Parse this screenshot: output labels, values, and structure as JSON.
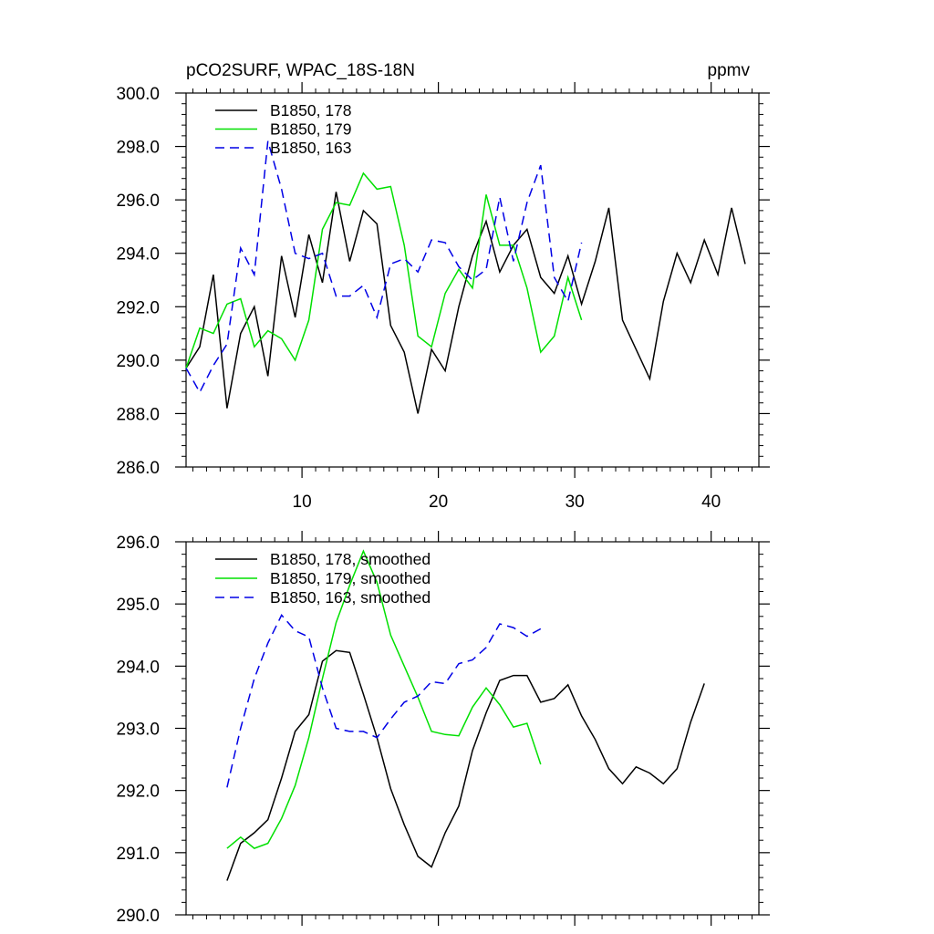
{
  "colors": {
    "series_178": "#000000",
    "series_179": "#00e000",
    "series_163": "#0000e6",
    "frame": "#000000",
    "background": "#ffffff"
  },
  "chart_data": [
    {
      "type": "line",
      "title": "pCO2SURF, WPAC_18S-18N",
      "units": "ppmv",
      "xlim": [
        1.5,
        43.5
      ],
      "ylim": [
        286.0,
        300.0
      ],
      "x_ticks": [
        10,
        20,
        30,
        40
      ],
      "x_tick_labels": [
        "10",
        "20",
        "30",
        "40"
      ],
      "y_ticks": [
        286,
        288,
        290,
        292,
        294,
        296,
        298,
        300
      ],
      "y_tick_labels": [
        "286.0",
        "288.0",
        "290.0",
        "292.0",
        "294.0",
        "296.0",
        "298.0",
        "300.0"
      ],
      "legend_position": "top-left",
      "series": [
        {
          "name": "B1850, 178",
          "color": "#000000",
          "dash": "solid",
          "x": [
            1.5,
            2.5,
            3.5,
            4.5,
            5.5,
            6.5,
            7.5,
            8.5,
            9.5,
            10.5,
            11.5,
            12.5,
            13.5,
            14.5,
            15.5,
            16.5,
            17.5,
            18.5,
            19.5,
            20.5,
            21.5,
            22.5,
            23.5,
            24.5,
            25.5,
            26.5,
            27.5,
            28.5,
            29.5,
            30.5,
            31.5,
            32.5,
            33.5,
            34.5,
            35.5,
            36.5,
            37.5,
            38.5,
            39.5,
            40.5,
            41.5,
            42.5
          ],
          "values": [
            289.7,
            290.5,
            293.2,
            288.2,
            291.0,
            292.0,
            289.4,
            293.9,
            291.6,
            294.7,
            292.9,
            296.3,
            293.7,
            295.6,
            295.1,
            291.3,
            290.3,
            288.0,
            290.4,
            289.6,
            292.0,
            293.9,
            295.2,
            293.3,
            294.3,
            294.9,
            293.1,
            292.5,
            293.9,
            292.1,
            293.7,
            295.7,
            291.5,
            290.4,
            289.3,
            292.2,
            294.0,
            292.9,
            294.5,
            293.2,
            295.7,
            293.6
          ]
        },
        {
          "name": "B1850, 179",
          "color": "#00e000",
          "dash": "solid",
          "x": [
            1.5,
            2.5,
            3.5,
            4.5,
            5.5,
            6.5,
            7.5,
            8.5,
            9.5,
            10.5,
            11.5,
            12.5,
            13.5,
            14.5,
            15.5,
            16.5,
            17.5,
            18.5,
            19.5,
            20.5,
            21.5,
            22.5,
            23.5,
            24.5,
            25.5,
            26.5,
            27.5,
            28.5,
            29.5,
            30.5
          ],
          "values": [
            289.7,
            291.2,
            291.0,
            292.1,
            292.3,
            290.5,
            291.1,
            290.8,
            290.0,
            291.5,
            294.9,
            295.9,
            295.8,
            297.0,
            296.4,
            296.5,
            294.3,
            290.9,
            290.5,
            292.5,
            293.4,
            292.7,
            296.2,
            294.3,
            294.3,
            292.7,
            290.3,
            290.9,
            293.1,
            291.5
          ]
        },
        {
          "name": "B1850, 163",
          "color": "#0000e6",
          "dash": "dashed",
          "x": [
            1.5,
            2.5,
            3.5,
            4.5,
            5.5,
            6.5,
            7.5,
            8.5,
            9.5,
            10.5,
            11.5,
            12.5,
            13.5,
            14.5,
            15.5,
            16.5,
            17.5,
            18.5,
            19.5,
            20.5,
            21.5,
            22.5,
            23.5,
            24.5,
            25.5,
            26.5,
            27.5,
            28.5,
            29.5,
            30.5
          ],
          "values": [
            289.7,
            288.8,
            289.8,
            290.6,
            294.2,
            293.2,
            298.2,
            296.4,
            294.0,
            293.8,
            294.0,
            292.4,
            292.4,
            292.8,
            291.6,
            293.6,
            293.8,
            293.3,
            294.5,
            294.4,
            293.5,
            293.0,
            293.4,
            296.1,
            293.7,
            295.9,
            297.3,
            293.1,
            292.2,
            294.4
          ]
        }
      ]
    },
    {
      "type": "line",
      "title": "",
      "xlim": [
        1.5,
        43.5
      ],
      "ylim": [
        290.0,
        296.0
      ],
      "x_ticks": [
        10,
        20,
        30,
        40
      ],
      "y_ticks": [
        290,
        291,
        292,
        293,
        294,
        295,
        296
      ],
      "y_tick_labels": [
        "290.0",
        "291.0",
        "292.0",
        "293.0",
        "294.0",
        "295.0",
        "296.0"
      ],
      "legend_position": "top-left",
      "series": [
        {
          "name": "B1850, 178, smoothed",
          "color": "#000000",
          "dash": "solid",
          "x": [
            4.5,
            5.5,
            6.5,
            7.5,
            8.5,
            9.5,
            10.5,
            11.5,
            12.5,
            13.5,
            14.5,
            15.5,
            16.5,
            17.5,
            18.5,
            19.5,
            20.5,
            21.5,
            22.5,
            23.5,
            24.5,
            25.5,
            26.5,
            27.5,
            28.5,
            29.5,
            30.5,
            31.5,
            32.5,
            33.5,
            34.5,
            35.5,
            36.5,
            37.5,
            38.5,
            39.5
          ],
          "values": [
            290.55,
            291.15,
            291.32,
            291.53,
            292.2,
            292.95,
            293.22,
            294.08,
            294.25,
            294.22,
            293.55,
            292.85,
            292.03,
            291.45,
            290.94,
            290.77,
            291.32,
            291.75,
            292.64,
            293.25,
            293.77,
            293.85,
            293.85,
            293.42,
            293.48,
            293.7,
            293.2,
            292.82,
            292.35,
            292.11,
            292.38,
            292.28,
            292.11,
            292.35,
            293.1,
            293.72
          ]
        },
        {
          "name": "B1850, 179, smoothed",
          "color": "#00e000",
          "dash": "solid",
          "x": [
            4.5,
            5.5,
            6.5,
            7.5,
            8.5,
            9.5,
            10.5,
            11.5,
            12.5,
            13.5,
            14.5,
            15.5,
            16.5,
            17.5,
            18.5,
            19.5,
            20.5,
            21.5,
            22.5,
            23.5,
            24.5,
            25.5,
            26.5,
            27.5
          ],
          "values": [
            291.07,
            291.25,
            291.07,
            291.15,
            291.55,
            292.08,
            292.85,
            293.8,
            294.7,
            295.3,
            295.85,
            295.35,
            294.5,
            294.0,
            293.5,
            292.95,
            292.9,
            292.88,
            293.34,
            293.65,
            293.38,
            293.02,
            293.08,
            292.42
          ]
        },
        {
          "name": "B1850, 163, smoothed",
          "color": "#0000e6",
          "dash": "dashed",
          "x": [
            4.5,
            5.5,
            6.5,
            7.5,
            8.5,
            9.5,
            10.5,
            11.5,
            12.5,
            13.5,
            14.5,
            15.5,
            16.5,
            17.5,
            18.5,
            19.5,
            20.5,
            21.5,
            22.5,
            23.5,
            24.5,
            25.5,
            26.5,
            27.5
          ],
          "values": [
            292.05,
            293.0,
            293.8,
            294.37,
            294.82,
            294.57,
            294.47,
            293.65,
            293.0,
            292.95,
            292.95,
            292.85,
            293.15,
            293.42,
            293.52,
            293.75,
            293.72,
            294.04,
            294.1,
            294.3,
            294.68,
            294.62,
            294.48,
            294.6
          ]
        }
      ]
    }
  ]
}
